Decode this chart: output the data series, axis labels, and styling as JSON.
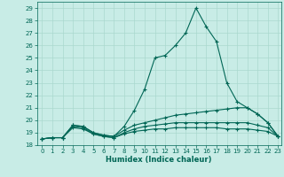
{
  "xlabel": "Humidex (Indice chaleur)",
  "xlim": [
    -0.5,
    23.3
  ],
  "ylim": [
    18,
    29.5
  ],
  "xticks": [
    0,
    1,
    2,
    3,
    4,
    5,
    6,
    7,
    8,
    9,
    10,
    11,
    12,
    13,
    14,
    15,
    16,
    17,
    18,
    19,
    20,
    21,
    22,
    23
  ],
  "yticks": [
    18,
    19,
    20,
    21,
    22,
    23,
    24,
    25,
    26,
    27,
    28,
    29
  ],
  "background_color": "#c8ece6",
  "grid_color": "#aad8ce",
  "line_color": "#006655",
  "lines": [
    {
      "x": [
        0,
        1,
        2,
        3,
        4,
        5,
        6,
        7,
        8,
        9,
        10,
        11,
        12,
        13,
        14,
        15,
        16,
        17,
        18,
        19,
        20,
        21,
        22,
        23
      ],
      "y": [
        18.5,
        18.6,
        18.6,
        19.6,
        19.5,
        19.0,
        18.8,
        18.7,
        19.5,
        20.8,
        22.5,
        25.0,
        25.2,
        26.0,
        27.0,
        29.0,
        27.5,
        26.3,
        23.0,
        21.5,
        21.0,
        20.5,
        19.8,
        18.7
      ]
    },
    {
      "x": [
        0,
        1,
        2,
        3,
        4,
        5,
        6,
        7,
        8,
        9,
        10,
        11,
        12,
        13,
        14,
        15,
        16,
        17,
        18,
        19,
        20,
        21,
        22,
        23
      ],
      "y": [
        18.5,
        18.6,
        18.6,
        19.6,
        19.5,
        19.0,
        18.8,
        18.7,
        19.2,
        19.6,
        19.8,
        20.0,
        20.2,
        20.4,
        20.5,
        20.6,
        20.7,
        20.8,
        20.9,
        21.0,
        21.0,
        20.5,
        19.8,
        18.7
      ]
    },
    {
      "x": [
        0,
        1,
        2,
        3,
        4,
        5,
        6,
        7,
        8,
        9,
        10,
        11,
        12,
        13,
        14,
        15,
        16,
        17,
        18,
        19,
        20,
        21,
        22,
        23
      ],
      "y": [
        18.5,
        18.6,
        18.6,
        19.5,
        19.4,
        18.9,
        18.7,
        18.6,
        19.0,
        19.3,
        19.5,
        19.6,
        19.7,
        19.8,
        19.8,
        19.8,
        19.8,
        19.8,
        19.8,
        19.8,
        19.8,
        19.6,
        19.4,
        18.7
      ]
    },
    {
      "x": [
        0,
        1,
        2,
        3,
        4,
        5,
        6,
        7,
        8,
        9,
        10,
        11,
        12,
        13,
        14,
        15,
        16,
        17,
        18,
        19,
        20,
        21,
        22,
        23
      ],
      "y": [
        18.5,
        18.6,
        18.6,
        19.4,
        19.3,
        18.9,
        18.7,
        18.6,
        18.9,
        19.1,
        19.2,
        19.3,
        19.3,
        19.4,
        19.4,
        19.4,
        19.4,
        19.4,
        19.3,
        19.3,
        19.3,
        19.2,
        19.1,
        18.7
      ]
    }
  ],
  "marker": "+",
  "markersize": 3,
  "linewidth": 0.8,
  "label_fontsize": 6,
  "tick_fontsize": 5
}
